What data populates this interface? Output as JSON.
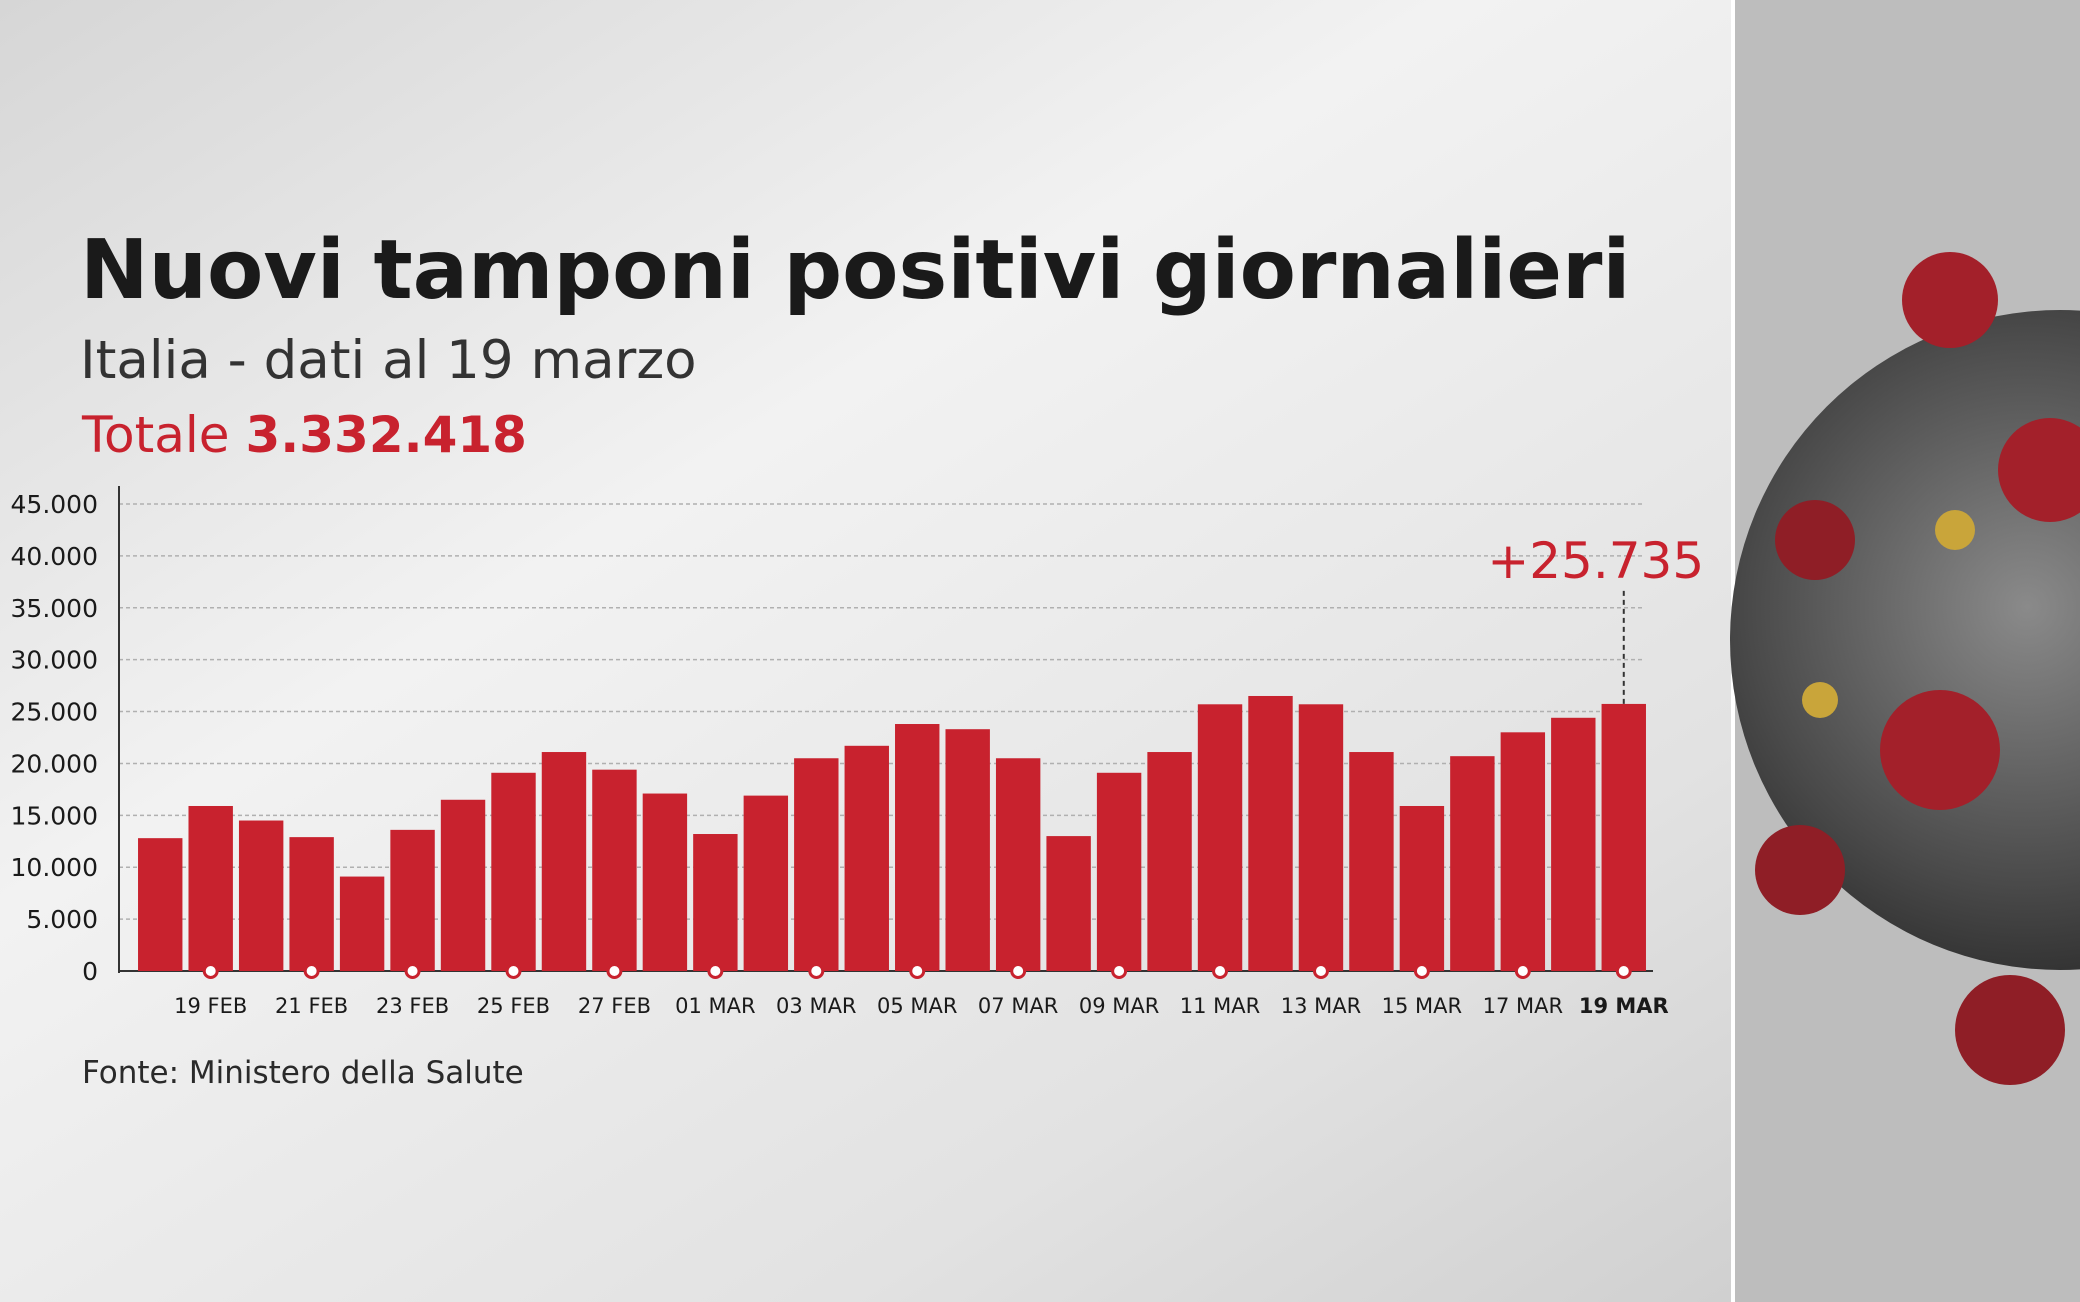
{
  "chart_data": {
    "type": "bar",
    "title": "Nuovi tamponi positivi giornalieri",
    "subtitle": "Italia - dati al 19 marzo",
    "total_label": "Totale",
    "total_value": "3.332.418",
    "source": "Fonte: Ministero della Salute",
    "categories": [
      null,
      "19 FEB",
      null,
      "21 FEB",
      null,
      "23 FEB",
      null,
      "25 FEB",
      null,
      "27 FEB",
      null,
      "01 MAR",
      null,
      "03 MAR",
      null,
      "05 MAR",
      null,
      "07 MAR",
      null,
      "09 MAR",
      null,
      "11 MAR",
      null,
      "13 MAR",
      null,
      "15 MAR",
      null,
      "17 MAR",
      null,
      "19 MAR"
    ],
    "values": [
      12800,
      15900,
      14500,
      12900,
      9100,
      13600,
      16500,
      19100,
      21100,
      19400,
      17100,
      13200,
      16900,
      20500,
      21700,
      23800,
      23300,
      20500,
      13000,
      19100,
      21100,
      25700,
      26500,
      25700,
      21100,
      15900,
      20700,
      23000,
      24400,
      25735
    ],
    "value_labels": [
      null,
      null,
      null,
      null,
      null,
      null,
      null,
      null,
      null,
      null,
      null,
      null,
      null,
      null,
      null,
      null,
      null,
      null,
      null,
      null,
      null,
      null,
      null,
      null,
      null,
      null,
      null,
      null,
      null,
      "+25.735"
    ],
    "color": "#c8222e",
    "ylim": [
      0,
      45000
    ],
    "yticks": [
      0,
      {
        "value": 5000,
        "label": "5.000"
      },
      {
        "value": 10000,
        "label": "10.000"
      },
      {
        "value": 15000,
        "label": "15.000"
      },
      {
        "value": 20000,
        "label": "20.000"
      },
      {
        "value": 25000,
        "label": "25.000"
      },
      {
        "value": 30000,
        "label": "30.000"
      },
      {
        "value": 35000,
        "label": "35.000"
      },
      {
        "value": 40000,
        "label": "40.000"
      },
      {
        "value": 45000,
        "label": "45.000"
      }
    ],
    "grid": true
  }
}
